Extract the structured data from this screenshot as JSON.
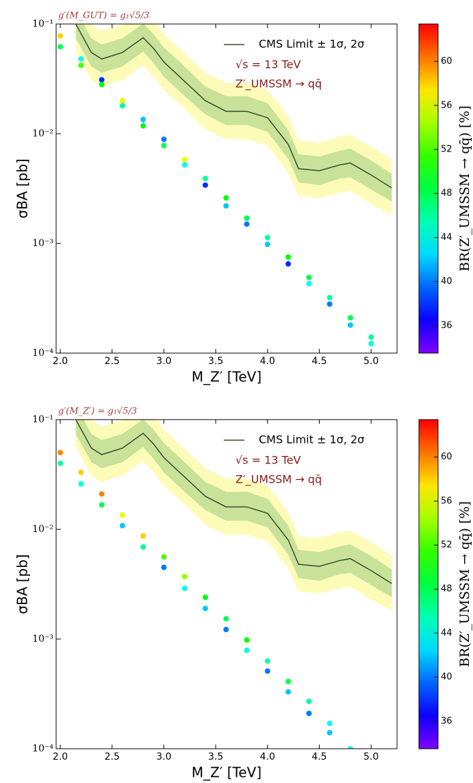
{
  "chart_data": [
    {
      "type": "scatter",
      "title": "g′(M_GUT) = g₁√5/3",
      "xlabel": "M_Z′ [TeV]",
      "ylabel": "σBA [pb]",
      "colorbar_label": "BR(Z′_UMSSM → qq̄) [%]",
      "annotations": [
        "√s = 13 TeV",
        "Z′_UMSSM → qq̄"
      ],
      "ylog": true,
      "xlim": [
        1.96,
        5.25
      ],
      "xticks": [
        {
          "value": 2,
          "label": "2.0"
        },
        2.5,
        {
          "value": 3,
          "label": "3.0"
        },
        3.5,
        {
          "value": 4,
          "label": "4.0"
        },
        4.5,
        {
          "value": 5,
          "label": "5.0"
        }
      ],
      "ylim": [
        0.0001,
        0.1
      ],
      "yticks": [
        {
          "value": 0.0001,
          "label": "10⁻⁴"
        },
        {
          "value": 0.001,
          "label": "10⁻³"
        },
        {
          "value": 0.01,
          "label": "10⁻²"
        },
        {
          "value": 0.1,
          "label": "10⁻¹"
        }
      ],
      "clim": [
        33.5,
        63.4
      ],
      "cticks": [
        36,
        40,
        44,
        48,
        52,
        56,
        60
      ],
      "scatter": {
        "x": [
          2.0,
          2.0,
          2.2,
          2.2,
          2.4,
          2.4,
          2.6,
          2.6,
          2.8,
          2.8,
          3.0,
          3.0,
          3.2,
          3.2,
          3.4,
          3.4,
          3.6,
          3.6,
          3.8,
          3.8,
          4.0,
          4.0,
          4.2,
          4.2,
          4.4,
          4.4,
          4.6,
          4.6,
          4.8,
          4.8,
          5.0,
          5.0
        ],
        "y": [
          0.078,
          0.062,
          0.048,
          0.042,
          0.031,
          0.028,
          0.02,
          0.018,
          0.0135,
          0.0118,
          0.0089,
          0.0078,
          0.0058,
          0.0052,
          0.0039,
          0.0034,
          0.0026,
          0.0022,
          0.0017,
          0.0015,
          0.00113,
          0.00098,
          0.00075,
          0.00065,
          0.00049,
          0.00043,
          0.00032,
          0.00028,
          0.00021,
          0.00018,
          0.00014,
          0.000122
        ],
        "c": [
          58,
          48,
          44,
          52,
          38,
          50,
          56,
          46,
          42,
          50,
          40,
          48,
          56,
          44,
          46,
          38,
          50,
          42,
          48,
          40,
          46,
          42,
          50,
          38,
          48,
          44,
          46,
          40,
          48,
          42,
          46,
          44
        ]
      },
      "limit": {
        "name": "CMS Limit ± 1σ, 2σ",
        "color": "#3a4a2a",
        "sigma1_color": "#c9e29a",
        "sigma2_color": "#fdfbb8",
        "x": [
          2.15,
          2.3,
          2.4,
          2.6,
          2.8,
          2.9,
          3.0,
          3.2,
          3.4,
          3.6,
          3.8,
          4.0,
          4.2,
          4.3,
          4.5,
          4.7,
          4.8,
          5.0,
          5.2
        ],
        "values": [
          0.1,
          0.055,
          0.048,
          0.055,
          0.075,
          0.06,
          0.045,
          0.03,
          0.02,
          0.016,
          0.016,
          0.014,
          0.008,
          0.0048,
          0.0046,
          0.0052,
          0.0054,
          0.0042,
          0.0032
        ],
        "sigma1_low": [
          0.074,
          0.041,
          0.036,
          0.041,
          0.056,
          0.044,
          0.033,
          0.022,
          0.015,
          0.012,
          0.012,
          0.0104,
          0.0059,
          0.0036,
          0.0034,
          0.0039,
          0.004,
          0.0031,
          0.0024
        ],
        "sigma1_high": [
          0.135,
          0.074,
          0.065,
          0.074,
          0.101,
          0.081,
          0.061,
          0.041,
          0.027,
          0.022,
          0.022,
          0.019,
          0.0108,
          0.0065,
          0.0062,
          0.007,
          0.0073,
          0.0057,
          0.0043
        ],
        "sigma2_low": [
          0.056,
          0.031,
          0.027,
          0.031,
          0.042,
          0.033,
          0.025,
          0.017,
          0.011,
          0.0089,
          0.0089,
          0.0078,
          0.0044,
          0.0027,
          0.0026,
          0.0029,
          0.003,
          0.0023,
          0.0018
        ],
        "sigma2_high": [
          0.18,
          0.099,
          0.086,
          0.099,
          0.135,
          0.108,
          0.081,
          0.054,
          0.036,
          0.029,
          0.029,
          0.025,
          0.0144,
          0.0086,
          0.0083,
          0.0094,
          0.0097,
          0.0076,
          0.0058
        ]
      }
    },
    {
      "type": "scatter",
      "title": "g′(M_Z′) = g₁√5/3",
      "xlabel": "M_Z′ [TeV]",
      "ylabel": "σBA [pb]",
      "colorbar_label": "BR(Z′_UMSSM → qq̄) [%]",
      "annotations": [
        "√s = 13 TeV",
        "Z′_UMSSM → qq̄"
      ],
      "ylog": true,
      "xlim": [
        1.96,
        5.25
      ],
      "xticks": [
        {
          "value": 2,
          "label": "2.0"
        },
        2.5,
        {
          "value": 3,
          "label": "3.0"
        },
        3.5,
        {
          "value": 4,
          "label": "4.0"
        },
        4.5,
        {
          "value": 5,
          "label": "5.0"
        }
      ],
      "ylim": [
        0.0001,
        0.1
      ],
      "yticks": [
        {
          "value": 0.0001,
          "label": "10⁻⁴"
        },
        {
          "value": 0.001,
          "label": "10⁻³"
        },
        {
          "value": 0.01,
          "label": "10⁻²"
        },
        {
          "value": 0.1,
          "label": "10⁻¹"
        }
      ],
      "clim": [
        33.5,
        63.4
      ],
      "cticks": [
        36,
        40,
        44,
        48,
        52,
        56,
        60
      ],
      "scatter": {
        "x": [
          2.0,
          2.0,
          2.2,
          2.2,
          2.4,
          2.4,
          2.6,
          2.6,
          2.8,
          2.8,
          3.0,
          3.0,
          3.2,
          3.2,
          3.4,
          3.4,
          3.6,
          3.6,
          3.8,
          3.8,
          4.0,
          4.0,
          4.2,
          4.2,
          4.4,
          4.4,
          4.6,
          4.6,
          4.8
        ],
        "y": [
          0.05,
          0.04,
          0.033,
          0.026,
          0.021,
          0.0167,
          0.0135,
          0.0108,
          0.0087,
          0.0069,
          0.0056,
          0.0045,
          0.0037,
          0.0029,
          0.0024,
          0.0019,
          0.00153,
          0.00122,
          0.00098,
          0.00079,
          0.00063,
          0.00051,
          0.00041,
          0.00033,
          0.00027,
          0.00021,
          0.00017,
          0.00014,
          0.0001
        ],
        "c": [
          60,
          46,
          58,
          44,
          60,
          48,
          56,
          42,
          58,
          46,
          52,
          40,
          54,
          44,
          50,
          42,
          48,
          40,
          50,
          44,
          46,
          40,
          48,
          42,
          46,
          40,
          44,
          42,
          44
        ]
      },
      "limit": {
        "name": "CMS Limit ± 1σ, 2σ",
        "color": "#3a4a2a",
        "sigma1_color": "#c9e29a",
        "sigma2_color": "#fdfbb8",
        "x": [
          2.15,
          2.3,
          2.4,
          2.6,
          2.8,
          2.9,
          3.0,
          3.2,
          3.4,
          3.6,
          3.8,
          4.0,
          4.2,
          4.3,
          4.5,
          4.7,
          4.8,
          5.0,
          5.2
        ],
        "values": [
          0.1,
          0.055,
          0.048,
          0.055,
          0.075,
          0.06,
          0.045,
          0.03,
          0.02,
          0.016,
          0.016,
          0.014,
          0.008,
          0.0048,
          0.0046,
          0.0052,
          0.0054,
          0.0042,
          0.0032
        ],
        "sigma1_low": [
          0.074,
          0.041,
          0.036,
          0.041,
          0.056,
          0.044,
          0.033,
          0.022,
          0.015,
          0.012,
          0.012,
          0.0104,
          0.0059,
          0.0036,
          0.0034,
          0.0039,
          0.004,
          0.0031,
          0.0024
        ],
        "sigma1_high": [
          0.135,
          0.074,
          0.065,
          0.074,
          0.101,
          0.081,
          0.061,
          0.041,
          0.027,
          0.022,
          0.022,
          0.019,
          0.0108,
          0.0065,
          0.0062,
          0.007,
          0.0073,
          0.0057,
          0.0043
        ],
        "sigma2_low": [
          0.056,
          0.031,
          0.027,
          0.031,
          0.042,
          0.033,
          0.025,
          0.017,
          0.011,
          0.0089,
          0.0089,
          0.0078,
          0.0044,
          0.0027,
          0.0026,
          0.0029,
          0.003,
          0.0023,
          0.0018
        ],
        "sigma2_high": [
          0.18,
          0.099,
          0.086,
          0.099,
          0.135,
          0.108,
          0.081,
          0.054,
          0.036,
          0.029,
          0.029,
          0.025,
          0.0144,
          0.0086,
          0.0083,
          0.0094,
          0.0097,
          0.0076,
          0.0058
        ]
      }
    }
  ]
}
